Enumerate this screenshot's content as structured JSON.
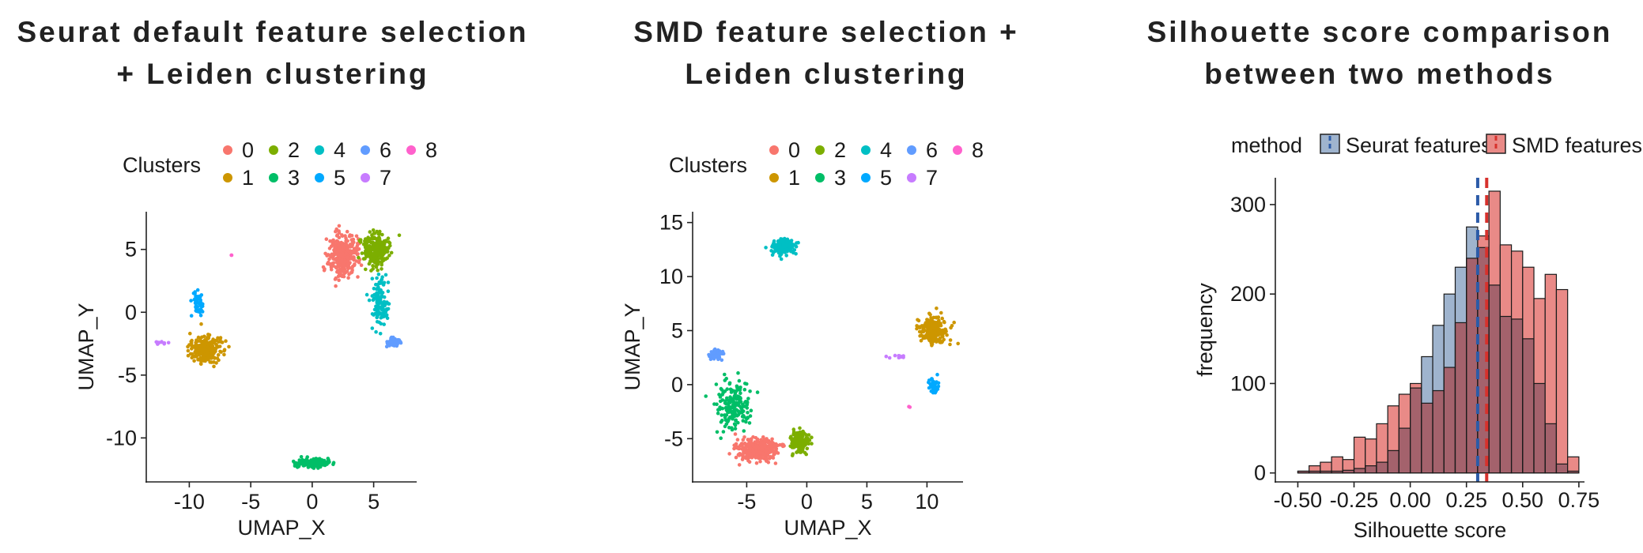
{
  "titles": {
    "panel1": [
      "Seurat default feature selection",
      "+ Leiden clustering"
    ],
    "panel2": [
      "SMD feature selection +",
      "Leiden clustering"
    ],
    "panel3": [
      "Silhouette score comparison",
      "between two methods"
    ]
  },
  "cluster_colors": [
    "#F8766D",
    "#CD9600",
    "#7CAE00",
    "#00BE67",
    "#00BFC4",
    "#00A9FF",
    "#619CFF",
    "#C77CFF",
    "#FF61CC"
  ],
  "method_colors": {
    "seurat_fill": "#9FB4CE",
    "smd_fill": "#E98A87",
    "overlap_fill": "#A4626C",
    "seurat_line": "#2C5BA8",
    "smd_line": "#D7312C"
  },
  "chart_data": [
    {
      "type": "scatter",
      "title": "Seurat default feature selection + Leiden clustering",
      "xlabel": "UMAP_X",
      "ylabel": "UMAP_Y",
      "xlim": [
        -13.5,
        8.5
      ],
      "ylim": [
        -13.5,
        8
      ],
      "xticks": [
        -10,
        -5,
        0,
        5
      ],
      "yticks": [
        -10,
        -5,
        0,
        5
      ],
      "legend_title": "Clusters",
      "legend_position": "top",
      "clusters": [
        {
          "name": "0",
          "points": 320,
          "center": [
            2.5,
            4.5
          ],
          "spread": [
            1.1,
            1.5
          ]
        },
        {
          "name": "1",
          "points": 230,
          "center": [
            -8.7,
            -3.0
          ],
          "spread": [
            1.2,
            0.9
          ]
        },
        {
          "name": "2",
          "points": 260,
          "center": [
            5.2,
            5.0
          ],
          "spread": [
            1.0,
            1.2
          ]
        },
        {
          "name": "3",
          "points": 160,
          "center": [
            0.2,
            -12.0
          ],
          "spread": [
            1.3,
            0.35
          ]
        },
        {
          "name": "4",
          "points": 120,
          "center": [
            5.5,
            0.8
          ],
          "spread": [
            0.6,
            1.8
          ]
        },
        {
          "name": "5",
          "points": 50,
          "center": [
            -9.3,
            0.7
          ],
          "spread": [
            0.4,
            0.9
          ]
        },
        {
          "name": "6",
          "points": 60,
          "center": [
            6.7,
            -2.4
          ],
          "spread": [
            0.5,
            0.35
          ]
        },
        {
          "name": "7",
          "points": 12,
          "center": [
            -12.3,
            -2.4
          ],
          "spread": [
            0.5,
            0.1
          ]
        },
        {
          "name": "8",
          "points": 2,
          "center": [
            -6.6,
            4.5
          ],
          "spread": [
            0.1,
            0.1
          ]
        }
      ]
    },
    {
      "type": "scatter",
      "title": "SMD feature selection + Leiden clustering",
      "xlabel": "UMAP_X",
      "ylabel": "UMAP_Y",
      "xlim": [
        -9.5,
        13
      ],
      "ylim": [
        -9,
        16
      ],
      "xticks": [
        -5,
        0,
        5,
        10
      ],
      "yticks": [
        -5,
        0,
        5,
        10,
        15
      ],
      "legend_title": "Clusters",
      "legend_position": "top",
      "clusters": [
        {
          "name": "0",
          "points": 320,
          "center": [
            -4.0,
            -6.0
          ],
          "spread": [
            1.6,
            0.9
          ]
        },
        {
          "name": "1",
          "points": 260,
          "center": [
            10.5,
            5.0
          ],
          "spread": [
            1.0,
            1.1
          ]
        },
        {
          "name": "2",
          "points": 150,
          "center": [
            -0.6,
            -5.3
          ],
          "spread": [
            0.7,
            0.9
          ]
        },
        {
          "name": "3",
          "points": 180,
          "center": [
            -6.0,
            -2.0
          ],
          "spread": [
            1.2,
            2.0
          ]
        },
        {
          "name": "4",
          "points": 140,
          "center": [
            -2.0,
            12.8
          ],
          "spread": [
            0.9,
            0.6
          ]
        },
        {
          "name": "5",
          "points": 50,
          "center": [
            10.6,
            -0.2
          ],
          "spread": [
            0.4,
            0.6
          ]
        },
        {
          "name": "6",
          "points": 70,
          "center": [
            -7.6,
            2.8
          ],
          "spread": [
            0.5,
            0.4
          ]
        },
        {
          "name": "7",
          "points": 12,
          "center": [
            7.5,
            2.6
          ],
          "spread": [
            0.5,
            0.15
          ]
        },
        {
          "name": "8",
          "points": 2,
          "center": [
            8.6,
            -2.1
          ],
          "spread": [
            0.1,
            0.1
          ]
        }
      ]
    },
    {
      "type": "histogram",
      "title": "Silhouette score comparison between two methods",
      "xlabel": "Silhouette score",
      "ylabel": "frequency",
      "xlim": [
        -0.6,
        0.775
      ],
      "ylim": [
        -10,
        330
      ],
      "xticks": [
        -0.5,
        -0.25,
        0.0,
        0.25,
        0.5,
        0.75
      ],
      "xtick_labels": [
        "-0.50",
        "-0.25",
        "0.00",
        "0.25",
        "0.50",
        "0.75"
      ],
      "yticks": [
        0,
        100,
        200,
        300
      ],
      "legend_title": "method",
      "legend_position": "top",
      "bin_width": 0.05,
      "bin_starts": [
        -0.5,
        -0.45,
        -0.4,
        -0.35,
        -0.3,
        -0.25,
        -0.2,
        -0.15,
        -0.1,
        -0.05,
        0.0,
        0.05,
        0.1,
        0.15,
        0.2,
        0.25,
        0.3,
        0.35,
        0.4,
        0.45,
        0.5,
        0.55,
        0.6,
        0.65,
        0.7
      ],
      "series": [
        {
          "name": "Seurat features",
          "values": [
            2,
            2,
            2,
            2,
            3,
            5,
            8,
            12,
            25,
            50,
            95,
            130,
            165,
            200,
            230,
            275,
            252,
            210,
            175,
            172,
            150,
            100,
            55,
            10,
            2
          ],
          "mean": 0.3
        },
        {
          "name": "SMD features",
          "values": [
            2,
            8,
            12,
            18,
            15,
            40,
            38,
            55,
            75,
            88,
            100,
            78,
            92,
            118,
            168,
            240,
            265,
            315,
            255,
            248,
            230,
            195,
            222,
            205,
            18
          ],
          "mean": 0.34
        }
      ]
    }
  ]
}
